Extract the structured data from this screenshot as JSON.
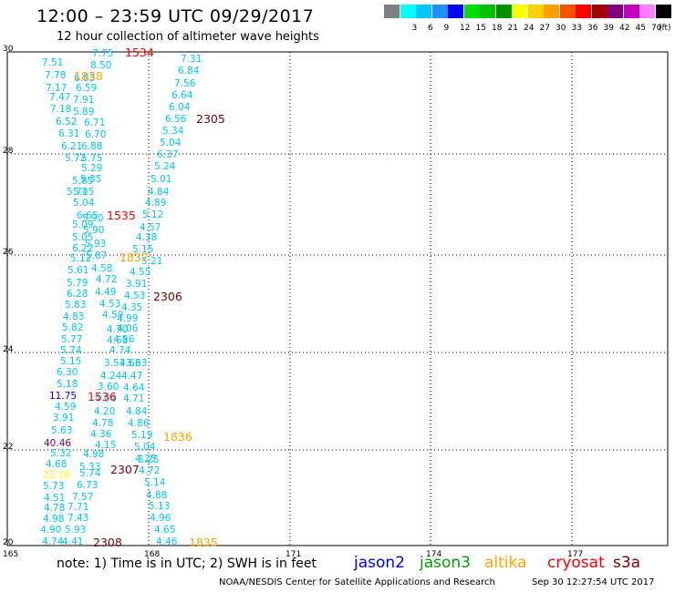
{
  "header": {
    "title": "12:00 – 23:59 UTC 09/29/2017",
    "subtitle": "12 hour collection of altimeter wave heights"
  },
  "legend": {
    "unit": "(ft)",
    "bins": [
      {
        "label": "",
        "color": "#808080"
      },
      {
        "label": "3",
        "color": "#00ffff"
      },
      {
        "label": "6",
        "color": "#00c8ff"
      },
      {
        "label": "9",
        "color": "#1e90ff"
      },
      {
        "label": "12",
        "color": "#0000ff"
      },
      {
        "label": "15",
        "color": "#00e000"
      },
      {
        "label": "18",
        "color": "#00c000"
      },
      {
        "label": "21",
        "color": "#009000"
      },
      {
        "label": "24",
        "color": "#ffff00"
      },
      {
        "label": "27",
        "color": "#ffd000"
      },
      {
        "label": "30",
        "color": "#ffa000"
      },
      {
        "label": "33",
        "color": "#ff5000"
      },
      {
        "label": "36",
        "color": "#ff0000"
      },
      {
        "label": "39",
        "color": "#a00000"
      },
      {
        "label": "42",
        "color": "#800080"
      },
      {
        "label": "45",
        "color": "#c000c0"
      },
      {
        "label": "70",
        "color": "#ff80ff"
      },
      {
        "label": "",
        "color": "#000000"
      }
    ]
  },
  "map": {
    "lat_ticks": [
      "30",
      "28",
      "26",
      "24",
      "22",
      "20"
    ],
    "lon_ticks": [
      "165",
      "168",
      "171",
      "174",
      "177"
    ],
    "lat_range": [
      20,
      30
    ],
    "lon_range": [
      165,
      179
    ]
  },
  "track_labels": [
    {
      "text": "1534",
      "color": "#ff0000"
    },
    {
      "text": "2305",
      "color": "#800000"
    },
    {
      "text": "1535",
      "color": "#ff0000"
    },
    {
      "text": "1837",
      "color": "#ffa500"
    },
    {
      "text": "2306",
      "color": "#800000"
    },
    {
      "text": "1536",
      "color": "#ff0000"
    },
    {
      "text": "1836",
      "color": "#ffa500"
    },
    {
      "text": "2307",
      "color": "#800000"
    },
    {
      "text": "2308",
      "color": "#800000"
    },
    {
      "text": "1835",
      "color": "#ffa500"
    },
    {
      "text": "1838",
      "color": "#ffa500"
    }
  ],
  "wave_heights": [
    {
      "text": "7.75",
      "color": "#00c8ff"
    },
    {
      "text": "8.50",
      "color": "#00c8ff"
    },
    {
      "text": "7.51",
      "color": "#00c8ff"
    },
    {
      "text": "7.78",
      "color": "#00c8ff"
    },
    {
      "text": "6.83",
      "color": "#00c8ff"
    },
    {
      "text": "7.17",
      "color": "#00c8ff"
    },
    {
      "text": "6.59",
      "color": "#00c8ff"
    },
    {
      "text": "7.47",
      "color": "#00c8ff"
    },
    {
      "text": "7.91",
      "color": "#00c8ff"
    },
    {
      "text": "7.18",
      "color": "#00c8ff"
    },
    {
      "text": "5.89",
      "color": "#00c8ff"
    },
    {
      "text": "6.52",
      "color": "#00c8ff"
    },
    {
      "text": "6.71",
      "color": "#00c8ff"
    },
    {
      "text": "6.31",
      "color": "#00c8ff"
    },
    {
      "text": "6.70",
      "color": "#00c8ff"
    },
    {
      "text": "6.21",
      "color": "#00c8ff"
    },
    {
      "text": "6.88",
      "color": "#00c8ff"
    },
    {
      "text": "5.72",
      "color": "#00c8ff"
    },
    {
      "text": "5.75",
      "color": "#00c8ff"
    },
    {
      "text": "5.29",
      "color": "#00c8ff"
    },
    {
      "text": "5.85",
      "color": "#00c8ff"
    },
    {
      "text": "5.35",
      "color": "#00c8ff"
    },
    {
      "text": "5.70",
      "color": "#00c8ff"
    },
    {
      "text": "5.15",
      "color": "#00c8ff"
    },
    {
      "text": "5.04",
      "color": "#00c8ff"
    },
    {
      "text": "6.65",
      "color": "#00c8ff"
    },
    {
      "text": "5.90",
      "color": "#00c8ff"
    },
    {
      "text": "5.09",
      "color": "#00c8ff"
    },
    {
      "text": "5.90",
      "color": "#00c8ff"
    },
    {
      "text": "5.05",
      "color": "#00c8ff"
    },
    {
      "text": "5.93",
      "color": "#00c8ff"
    },
    {
      "text": "6.22",
      "color": "#00c8ff"
    },
    {
      "text": "5.12",
      "color": "#00c8ff"
    },
    {
      "text": "5.87",
      "color": "#00c8ff"
    },
    {
      "text": "5.61",
      "color": "#00c8ff"
    },
    {
      "text": "4.58",
      "color": "#00c8ff"
    },
    {
      "text": "5.79",
      "color": "#00c8ff"
    },
    {
      "text": "4.72",
      "color": "#00c8ff"
    },
    {
      "text": "6.28",
      "color": "#00c8ff"
    },
    {
      "text": "4.49",
      "color": "#00c8ff"
    },
    {
      "text": "5.83",
      "color": "#00c8ff"
    },
    {
      "text": "4.53",
      "color": "#00c8ff"
    },
    {
      "text": "4.83",
      "color": "#00c8ff"
    },
    {
      "text": "4.50",
      "color": "#00c8ff"
    },
    {
      "text": "4.99",
      "color": "#00c8ff"
    },
    {
      "text": "5.82",
      "color": "#00c8ff"
    },
    {
      "text": "4.70",
      "color": "#00c8ff"
    },
    {
      "text": "5.77",
      "color": "#00c8ff"
    },
    {
      "text": "4.58",
      "color": "#00c8ff"
    },
    {
      "text": "5.74",
      "color": "#00c8ff"
    },
    {
      "text": "5.15",
      "color": "#00c8ff"
    },
    {
      "text": "3.57",
      "color": "#00c8ff"
    },
    {
      "text": "4.63",
      "color": "#00c8ff"
    },
    {
      "text": "6.30",
      "color": "#00c8ff"
    },
    {
      "text": "4.24",
      "color": "#00c8ff"
    },
    {
      "text": "4.47",
      "color": "#00c8ff"
    },
    {
      "text": "5.18",
      "color": "#00c8ff"
    },
    {
      "text": "3.60",
      "color": "#00c8ff"
    },
    {
      "text": "4.64",
      "color": "#00c8ff"
    },
    {
      "text": "11.75",
      "color": "#0000ff"
    },
    {
      "text": "4.04",
      "color": "#00c8ff"
    },
    {
      "text": "4.71",
      "color": "#00c8ff"
    },
    {
      "text": "4.59",
      "color": "#00c8ff"
    },
    {
      "text": "4.20",
      "color": "#00c8ff"
    },
    {
      "text": "4.84",
      "color": "#00c8ff"
    },
    {
      "text": "3.91",
      "color": "#00c8ff"
    },
    {
      "text": "4.78",
      "color": "#00c8ff"
    },
    {
      "text": "4.86",
      "color": "#00c8ff"
    },
    {
      "text": "5.63",
      "color": "#00c8ff"
    },
    {
      "text": "4.36",
      "color": "#00c8ff"
    },
    {
      "text": "5.19",
      "color": "#00c8ff"
    },
    {
      "text": "40.46",
      "color": "#800080"
    },
    {
      "text": "4.15",
      "color": "#00c8ff"
    },
    {
      "text": "5.04",
      "color": "#00c8ff"
    },
    {
      "text": "5.32",
      "color": "#00c8ff"
    },
    {
      "text": "4.98",
      "color": "#00c8ff"
    },
    {
      "text": "4.25",
      "color": "#00c8ff"
    },
    {
      "text": "4.68",
      "color": "#00c8ff"
    },
    {
      "text": "5.33",
      "color": "#00c8ff"
    },
    {
      "text": "4.72",
      "color": "#00c8ff"
    },
    {
      "text": "23.10",
      "color": "#ffff00"
    },
    {
      "text": "5.74",
      "color": "#00c8ff"
    },
    {
      "text": "5.73",
      "color": "#00c8ff"
    },
    {
      "text": "6.73",
      "color": "#00c8ff"
    },
    {
      "text": "5.14",
      "color": "#00c8ff"
    },
    {
      "text": "4.51",
      "color": "#00c8ff"
    },
    {
      "text": "7.57",
      "color": "#00c8ff"
    },
    {
      "text": "4.88",
      "color": "#00c8ff"
    },
    {
      "text": "4.78",
      "color": "#00c8ff"
    },
    {
      "text": "7.71",
      "color": "#00c8ff"
    },
    {
      "text": "5.13",
      "color": "#00c8ff"
    },
    {
      "text": "4.98",
      "color": "#00c8ff"
    },
    {
      "text": "7.43",
      "color": "#00c8ff"
    },
    {
      "text": "4.96",
      "color": "#00c8ff"
    },
    {
      "text": "4.90",
      "color": "#00c8ff"
    },
    {
      "text": "5.93",
      "color": "#00c8ff"
    },
    {
      "text": "4.65",
      "color": "#00c8ff"
    },
    {
      "text": "4.74",
      "color": "#00c8ff"
    },
    {
      "text": "4.41",
      "color": "#00c8ff"
    },
    {
      "text": "4.46",
      "color": "#00c8ff"
    },
    {
      "text": "7.31",
      "color": "#00c8ff"
    },
    {
      "text": "6.84",
      "color": "#00c8ff"
    },
    {
      "text": "7.56",
      "color": "#00c8ff"
    },
    {
      "text": "6.64",
      "color": "#00c8ff"
    },
    {
      "text": "6.04",
      "color": "#00c8ff"
    },
    {
      "text": "6.56",
      "color": "#00c8ff"
    },
    {
      "text": "5.34",
      "color": "#00c8ff"
    },
    {
      "text": "5.04",
      "color": "#00c8ff"
    },
    {
      "text": "6.37",
      "color": "#00c8ff"
    },
    {
      "text": "5.24",
      "color": "#00c8ff"
    },
    {
      "text": "5.01",
      "color": "#00c8ff"
    },
    {
      "text": "4.84",
      "color": "#00c8ff"
    },
    {
      "text": "4.89",
      "color": "#00c8ff"
    },
    {
      "text": "5.12",
      "color": "#00c8ff"
    },
    {
      "text": "4.57",
      "color": "#00c8ff"
    },
    {
      "text": "4.38",
      "color": "#00c8ff"
    },
    {
      "text": "5.15",
      "color": "#00c8ff"
    },
    {
      "text": "5.21",
      "color": "#00c8ff"
    },
    {
      "text": "4.55",
      "color": "#00c8ff"
    },
    {
      "text": "3.91",
      "color": "#00c8ff"
    },
    {
      "text": "4.53",
      "color": "#00c8ff"
    },
    {
      "text": "4.35",
      "color": "#00c8ff"
    },
    {
      "text": "4.06",
      "color": "#00c8ff"
    },
    {
      "text": "4.56",
      "color": "#00c8ff"
    },
    {
      "text": "4.74",
      "color": "#00c8ff"
    },
    {
      "text": "3.63",
      "color": "#00c8ff"
    },
    {
      "text": "5.25",
      "color": "#00c8ff"
    }
  ],
  "footer": {
    "note": "note: 1) Time is in UTC; 2) SWH is in feet",
    "satellites": [
      {
        "name": "jason2",
        "color": "#0000ff"
      },
      {
        "name": "jason3",
        "color": "#00a000"
      },
      {
        "name": "altika",
        "color": "#ffa500"
      },
      {
        "name": "cryosat",
        "color": "#ff0000"
      },
      {
        "name": "s3a",
        "color": "#800000"
      }
    ],
    "credit": "NOAA/NESDIS Center for Satellite Applications and Research",
    "timestamp": "Sep 30 12:27:54 UTC 2017"
  }
}
